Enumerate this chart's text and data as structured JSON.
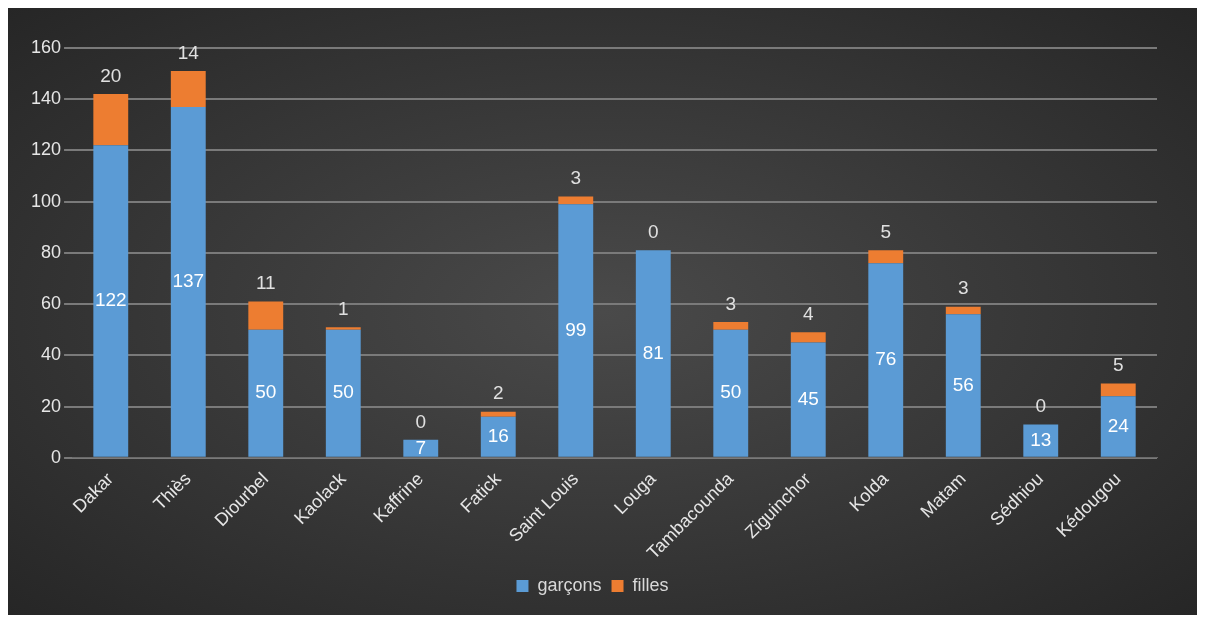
{
  "chart_data": {
    "type": "bar",
    "stacked": true,
    "categories": [
      "Dakar",
      "Thiès",
      "Diourbel",
      "Kaolack",
      "Kaffrine",
      "Fatick",
      "Saint Louis",
      "Louga",
      "Tambacounda",
      "Ziguinchor",
      "Kolda",
      "Matam",
      "Sédhiou",
      "Kédougou"
    ],
    "series": [
      {
        "name": "garçons",
        "color": "#5b9bd5",
        "values": [
          122,
          137,
          50,
          50,
          7,
          16,
          99,
          81,
          50,
          45,
          76,
          56,
          13,
          24
        ]
      },
      {
        "name": "filles",
        "color": "#ed7d31",
        "values": [
          20,
          14,
          11,
          1,
          0,
          2,
          3,
          0,
          3,
          4,
          5,
          3,
          0,
          5
        ]
      }
    ],
    "ylim": [
      0,
      160
    ],
    "yticks": [
      0,
      20,
      40,
      60,
      80,
      100,
      120,
      140,
      160
    ],
    "grid": "y",
    "legend": "bottom",
    "data_labels": true
  }
}
